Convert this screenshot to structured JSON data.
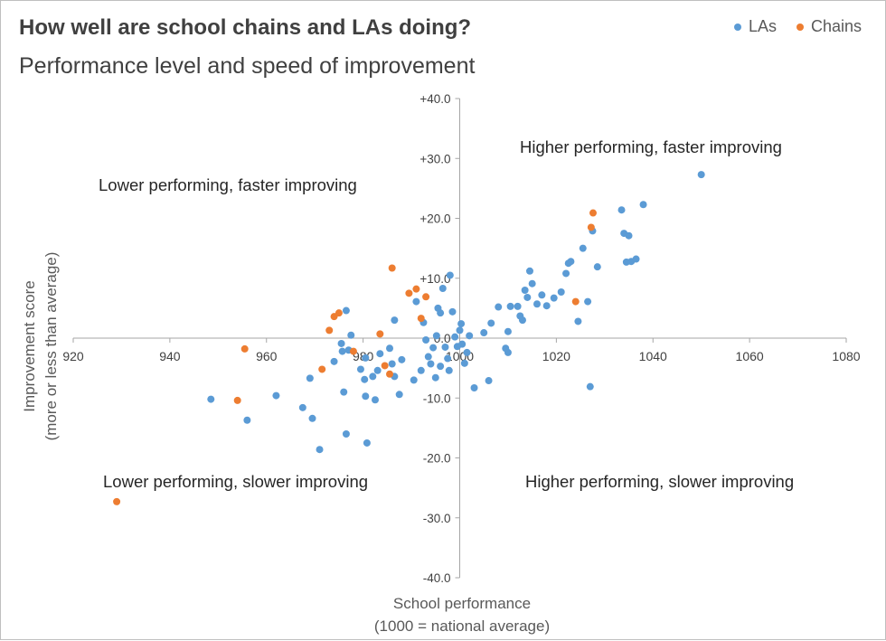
{
  "chart_data": {
    "type": "scatter",
    "title": "How well are school chains and LAs doing?",
    "subtitle": "Performance level and speed of improvement",
    "xlabel": [
      "School performance",
      "(1000 = national average)"
    ],
    "ylabel": [
      "Improvement score",
      "(more or less than average)"
    ],
    "xlim": [
      920,
      1080
    ],
    "ylim": [
      -40,
      40
    ],
    "x_ticks": [
      "920",
      "940",
      "960",
      "980",
      "1000",
      "1020",
      "1040",
      "1060",
      "1080"
    ],
    "y_ticks": [
      "+40.0",
      "+30.0",
      "+20.0",
      "+10.0",
      "0.0",
      "-10.0",
      "-20.0",
      "-30.0",
      "-40.0"
    ],
    "grid": false,
    "legend_position": "top-right",
    "quadrant_labels": {
      "top_right": "Higher performing, faster improving",
      "top_left": "Lower performing, faster improving",
      "bottom_left": "Lower performing, slower improving",
      "bottom_right": "Higher performing, slower improving"
    },
    "series": [
      {
        "name": "LAs",
        "color": "#5b9bd5",
        "points": [
          [
            948.5,
            -10.2
          ],
          [
            956,
            -13.7
          ],
          [
            962,
            -9.6
          ],
          [
            967.5,
            -11.6
          ],
          [
            969,
            -6.7
          ],
          [
            969.5,
            -13.4
          ],
          [
            971,
            -18.6
          ],
          [
            974,
            -3.9
          ],
          [
            975.5,
            -0.9
          ],
          [
            975.7,
            -2.2
          ],
          [
            976,
            -9
          ],
          [
            976.5,
            -16
          ],
          [
            976.5,
            4.6
          ],
          [
            977,
            -2
          ],
          [
            977.5,
            0.5
          ],
          [
            979.5,
            -5.2
          ],
          [
            980.3,
            -6.9
          ],
          [
            980.5,
            -3.3
          ],
          [
            980.5,
            -9.7
          ],
          [
            980.8,
            -17.5
          ],
          [
            982,
            -6.4
          ],
          [
            982.5,
            -10.3
          ],
          [
            983,
            -5.4
          ],
          [
            983.5,
            -2.6
          ],
          [
            985.5,
            -1.7
          ],
          [
            986,
            -4.3
          ],
          [
            986.5,
            -6.4
          ],
          [
            986.5,
            3
          ],
          [
            987.5,
            -9.4
          ],
          [
            988,
            -3.6
          ],
          [
            990.5,
            -7
          ],
          [
            991,
            6.1
          ],
          [
            992,
            -5.4
          ],
          [
            992.5,
            2.6
          ],
          [
            993,
            -0.3
          ],
          [
            993.5,
            -3.1
          ],
          [
            994,
            -4.3
          ],
          [
            994.5,
            -1.6
          ],
          [
            995,
            -6.6
          ],
          [
            995.2,
            0.4
          ],
          [
            995.5,
            5
          ],
          [
            996,
            4.2
          ],
          [
            996,
            -4.7
          ],
          [
            996.5,
            8.3
          ],
          [
            997,
            -1.5
          ],
          [
            997.5,
            -3.4
          ],
          [
            997.8,
            -5.4
          ],
          [
            998,
            10.5
          ],
          [
            998.5,
            4.4
          ],
          [
            999,
            0.2
          ],
          [
            999.5,
            -1.4
          ],
          [
            1000,
            1.3
          ],
          [
            1000.3,
            2.4
          ],
          [
            1000.5,
            -1
          ],
          [
            1001,
            -4.2
          ],
          [
            1001.5,
            -2.4
          ],
          [
            1002,
            0.4
          ],
          [
            1003,
            -8.3
          ],
          [
            1005,
            0.9
          ],
          [
            1006,
            -7.1
          ],
          [
            1006.5,
            2.5
          ],
          [
            1008,
            5.2
          ],
          [
            1009.5,
            -1.7
          ],
          [
            1010,
            -2.4
          ],
          [
            1010,
            1.1
          ],
          [
            1010.5,
            5.3
          ],
          [
            1012,
            5.3
          ],
          [
            1012.5,
            3.7
          ],
          [
            1013,
            3
          ],
          [
            1013.5,
            8
          ],
          [
            1014,
            6.8
          ],
          [
            1014.5,
            11.2
          ],
          [
            1015,
            9.1
          ],
          [
            1016,
            5.7
          ],
          [
            1017,
            7.2
          ],
          [
            1018,
            5.4
          ],
          [
            1019.5,
            6.7
          ],
          [
            1021,
            7.7
          ],
          [
            1022,
            10.8
          ],
          [
            1022.5,
            12.5
          ],
          [
            1023,
            12.8
          ],
          [
            1024.5,
            2.8
          ],
          [
            1025.5,
            15
          ],
          [
            1026.5,
            6.1
          ],
          [
            1027,
            -8.1
          ],
          [
            1027.5,
            17.9
          ],
          [
            1028.5,
            11.9
          ],
          [
            1033.5,
            21.4
          ],
          [
            1034,
            17.5
          ],
          [
            1034.5,
            12.7
          ],
          [
            1035,
            17.1
          ],
          [
            1035.5,
            12.8
          ],
          [
            1036.5,
            13.2
          ],
          [
            1038,
            22.3
          ],
          [
            1050,
            27.3
          ]
        ]
      },
      {
        "name": "Chains",
        "color": "#ed7d31",
        "points": [
          [
            929,
            -27.3
          ],
          [
            954,
            -10.4
          ],
          [
            955.5,
            -1.8
          ],
          [
            971.5,
            -5.2
          ],
          [
            973,
            1.3
          ],
          [
            974,
            3.6
          ],
          [
            975,
            4.2
          ],
          [
            978,
            -2.2
          ],
          [
            983.5,
            0.7
          ],
          [
            984.5,
            -4.6
          ],
          [
            985.5,
            -6
          ],
          [
            986,
            11.7
          ],
          [
            989.5,
            7.5
          ],
          [
            991,
            8.2
          ],
          [
            992,
            3.3
          ],
          [
            993,
            6.9
          ],
          [
            1024,
            6.1
          ],
          [
            1027.2,
            18.5
          ],
          [
            1027.6,
            20.9
          ]
        ]
      }
    ]
  }
}
